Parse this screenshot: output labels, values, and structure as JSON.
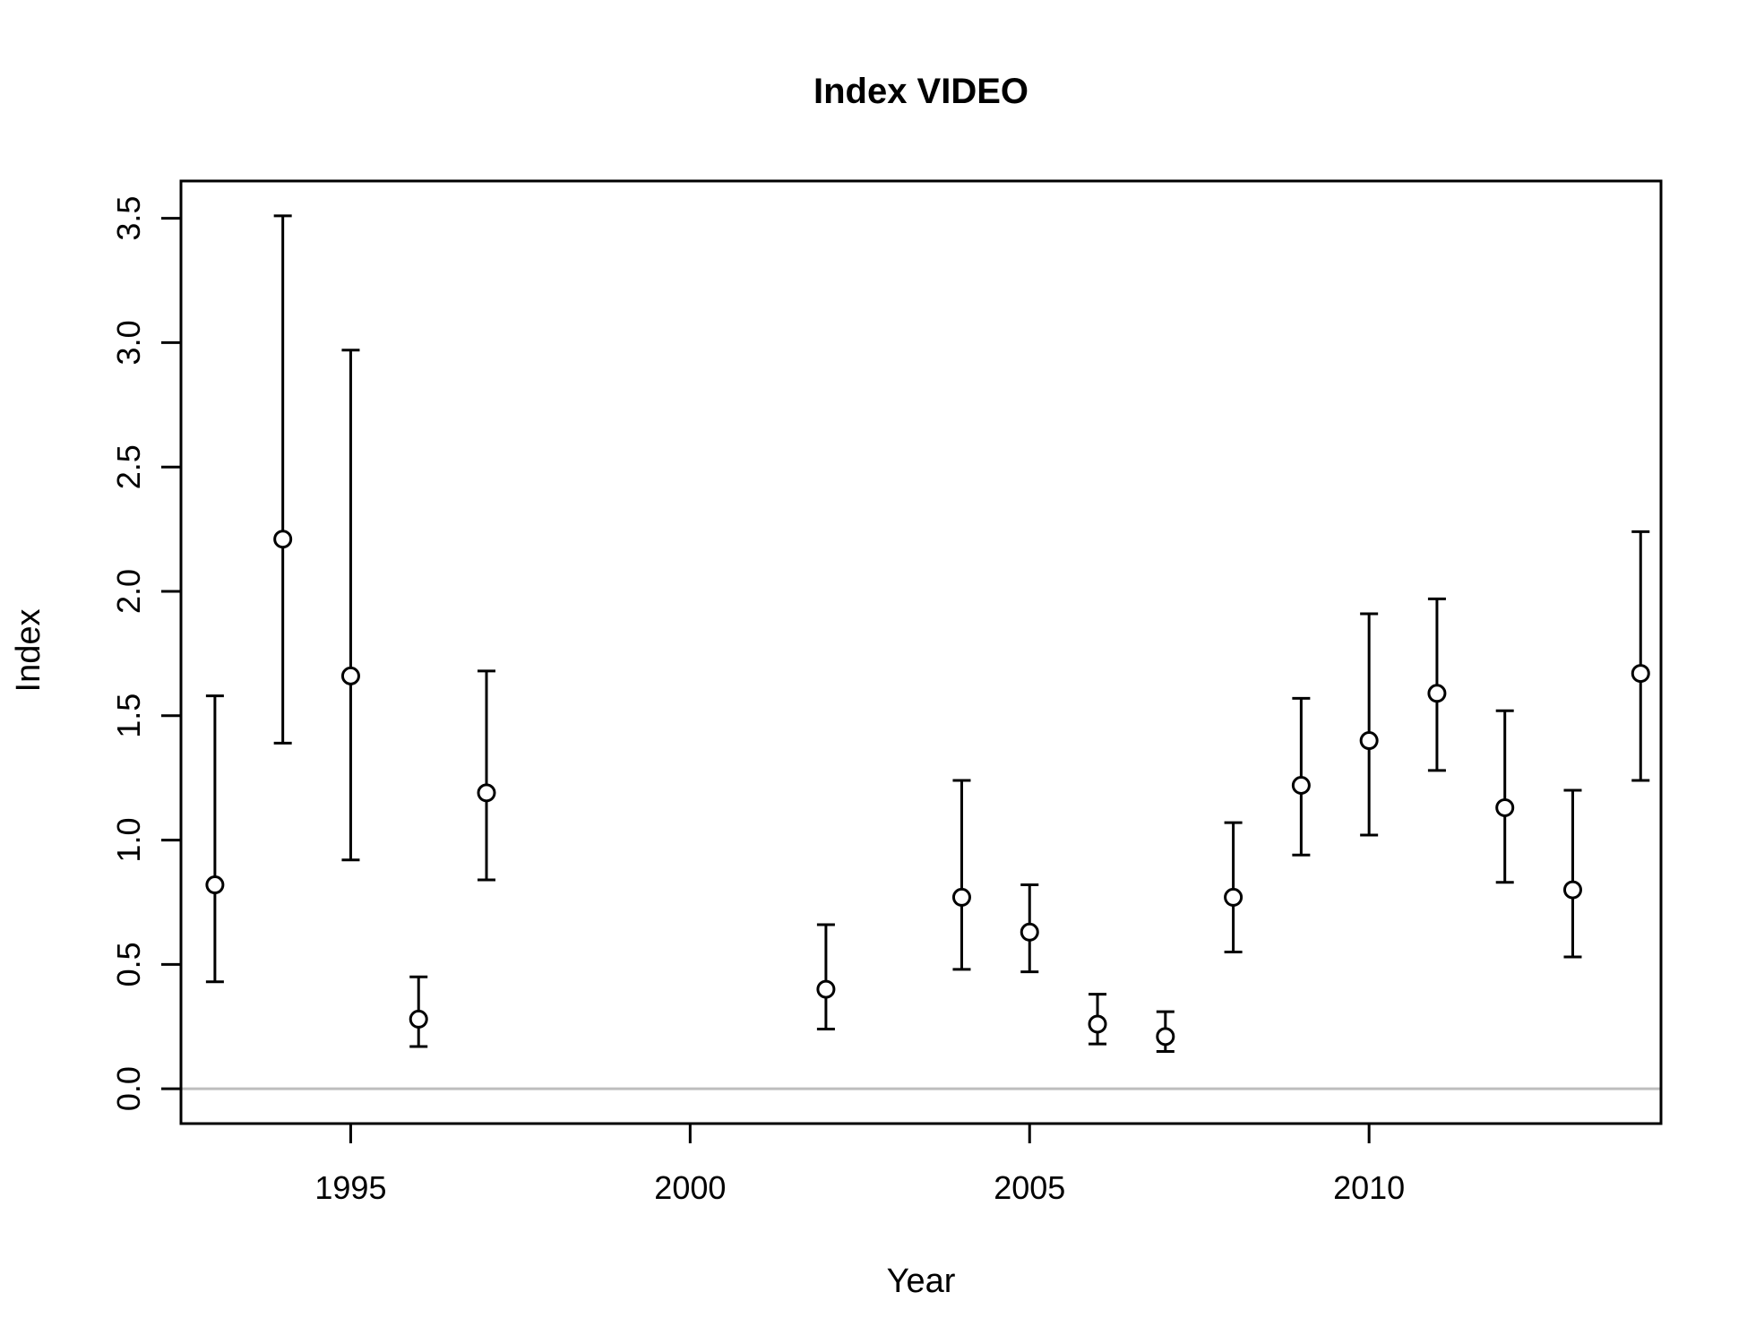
{
  "chart_data": {
    "type": "scatter",
    "title": "Index VIDEO",
    "xlabel": "Year",
    "ylabel": "Index",
    "xlim": [
      1992.5,
      2014.3
    ],
    "ylim": [
      -0.14,
      3.65
    ],
    "x_ticks": [
      1995,
      2000,
      2005,
      2010
    ],
    "y_ticks": [
      0.0,
      0.5,
      1.0,
      1.5,
      2.0,
      2.5,
      3.0,
      3.5
    ],
    "x_tick_labels": [
      "1995",
      "2000",
      "2005",
      "2010"
    ],
    "y_tick_labels": [
      "0.0",
      "0.5",
      "1.0",
      "1.5",
      "2.0",
      "2.5",
      "3.0",
      "3.5"
    ],
    "reference_line": {
      "y": 0,
      "color": "#bebebe"
    },
    "marker": "open-circle",
    "grid": false,
    "legend": "none",
    "points": [
      {
        "x": 1993,
        "y": 0.82,
        "lower": 0.43,
        "upper": 1.58
      },
      {
        "x": 1994,
        "y": 2.21,
        "lower": 1.39,
        "upper": 3.51
      },
      {
        "x": 1995,
        "y": 1.66,
        "lower": 0.92,
        "upper": 2.97
      },
      {
        "x": 1996,
        "y": 0.28,
        "lower": 0.17,
        "upper": 0.45
      },
      {
        "x": 1997,
        "y": 1.19,
        "lower": 0.84,
        "upper": 1.68
      },
      {
        "x": 2002,
        "y": 0.4,
        "lower": 0.24,
        "upper": 0.66
      },
      {
        "x": 2004,
        "y": 0.77,
        "lower": 0.48,
        "upper": 1.24
      },
      {
        "x": 2005,
        "y": 0.63,
        "lower": 0.47,
        "upper": 0.82
      },
      {
        "x": 2006,
        "y": 0.26,
        "lower": 0.18,
        "upper": 0.38
      },
      {
        "x": 2007,
        "y": 0.21,
        "lower": 0.15,
        "upper": 0.31
      },
      {
        "x": 2008,
        "y": 0.77,
        "lower": 0.55,
        "upper": 1.07
      },
      {
        "x": 2009,
        "y": 1.22,
        "lower": 0.94,
        "upper": 1.57
      },
      {
        "x": 2010,
        "y": 1.4,
        "lower": 1.02,
        "upper": 1.91
      },
      {
        "x": 2011,
        "y": 1.59,
        "lower": 1.28,
        "upper": 1.97
      },
      {
        "x": 2012,
        "y": 1.13,
        "lower": 0.83,
        "upper": 1.52
      },
      {
        "x": 2013,
        "y": 0.8,
        "lower": 0.53,
        "upper": 1.2
      },
      {
        "x": 2014,
        "y": 1.67,
        "lower": 1.24,
        "upper": 2.24
      }
    ]
  }
}
